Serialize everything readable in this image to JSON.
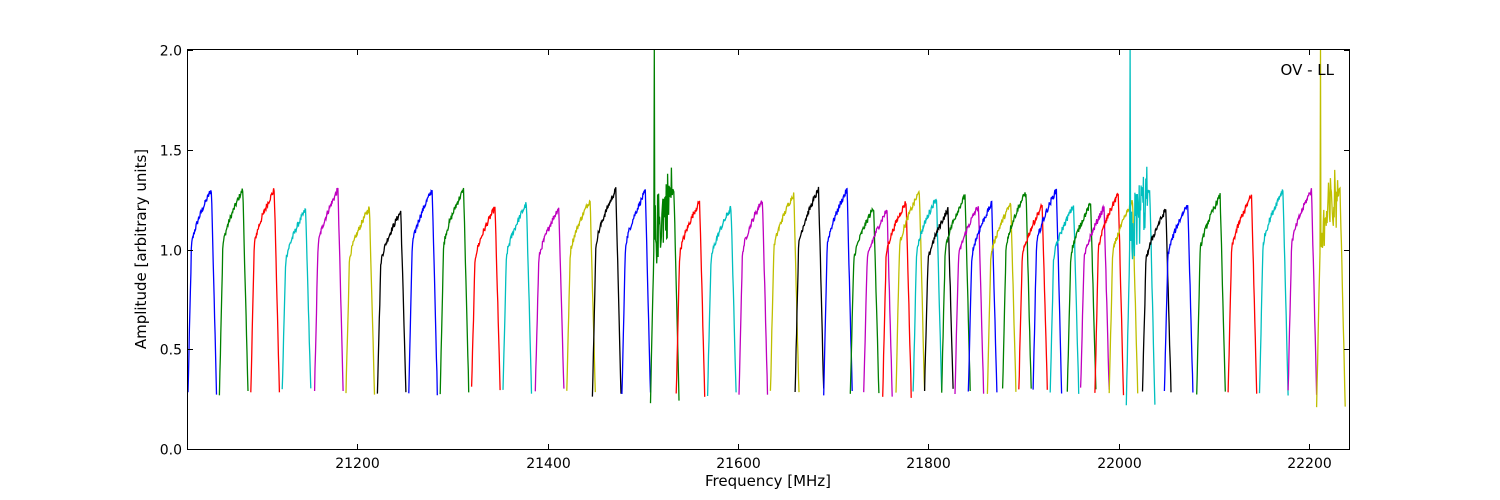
{
  "chart_data": {
    "type": "line",
    "title": "",
    "xlabel": "Frequency [MHz]",
    "ylabel": "Amplitude [arbitrary units]",
    "xlim": [
      21022,
      22242
    ],
    "ylim": [
      0.0,
      2.0
    ],
    "xticks": [
      21200,
      21400,
      21600,
      21800,
      22000,
      22200
    ],
    "yticks": [
      0.0,
      0.5,
      1.0,
      1.5,
      2.0
    ],
    "xtick_labels": [
      "21200",
      "21400",
      "21600",
      "21800",
      "22000",
      "22200"
    ],
    "ytick_labels": [
      "0.0",
      "0.5",
      "1.0",
      "1.5",
      "2.0"
    ],
    "grid": false,
    "legend": "none",
    "annotation": "OV - LL",
    "colors": [
      "#0000ff",
      "#008000",
      "#ff0000",
      "#00bfbf",
      "#bf00bf",
      "#bfbf00",
      "#000000"
    ],
    "band_width_mhz": 30,
    "bands": [
      {
        "start": 21022,
        "peak": 1.38,
        "base": 0.28,
        "color": "#0000ff"
      },
      {
        "start": 21055,
        "peak": 1.34,
        "base": 0.28,
        "color": "#008000"
      },
      {
        "start": 21088,
        "peak": 1.36,
        "base": 0.29,
        "color": "#ff0000"
      },
      {
        "start": 21121,
        "peak": 1.2,
        "base": 0.29,
        "color": "#00bfbf"
      },
      {
        "start": 21155,
        "peak": 1.33,
        "base": 0.29,
        "color": "#bf00bf"
      },
      {
        "start": 21188,
        "peak": 1.21,
        "base": 0.28,
        "color": "#bfbf00"
      },
      {
        "start": 21221,
        "peak": 1.19,
        "base": 0.29,
        "color": "#000000"
      },
      {
        "start": 21254,
        "peak": 1.36,
        "base": 0.28,
        "color": "#0000ff"
      },
      {
        "start": 21287,
        "peak": 1.42,
        "base": 0.29,
        "color": "#008000"
      },
      {
        "start": 21320,
        "peak": 1.21,
        "base": 0.3,
        "color": "#ff0000"
      },
      {
        "start": 21353,
        "peak": 1.23,
        "base": 0.29,
        "color": "#00bfbf"
      },
      {
        "start": 21387,
        "peak": 1.21,
        "base": 0.3,
        "color": "#bf00bf"
      },
      {
        "start": 21420,
        "peak": 1.25,
        "base": 0.28,
        "color": "#bfbf00"
      },
      {
        "start": 21447,
        "peak": 1.32,
        "base": 0.27,
        "color": "#000000"
      },
      {
        "start": 21478,
        "peak": 1.29,
        "base": 0.27,
        "color": "#0000ff"
      },
      {
        "start": 21508,
        "peak": 2.0,
        "base": 0.24,
        "color": "#008000"
      },
      {
        "start": 21535,
        "peak": 1.24,
        "base": 0.27,
        "color": "#ff0000"
      },
      {
        "start": 21568,
        "peak": 1.21,
        "base": 0.27,
        "color": "#00bfbf"
      },
      {
        "start": 21601,
        "peak": 1.25,
        "base": 0.28,
        "color": "#bf00bf"
      },
      {
        "start": 21634,
        "peak": 1.28,
        "base": 0.28,
        "color": "#bfbf00"
      },
      {
        "start": 21660,
        "peak": 1.36,
        "base": 0.29,
        "color": "#000000"
      },
      {
        "start": 21690,
        "peak": 1.31,
        "base": 0.28,
        "color": "#0000ff"
      },
      {
        "start": 21718,
        "peak": 1.21,
        "base": 0.28,
        "color": "#008000"
      },
      {
        "start": 21732,
        "peak": 1.2,
        "base": 0.27,
        "color": "#bf00bf"
      },
      {
        "start": 21752,
        "peak": 1.24,
        "base": 0.27,
        "color": "#ff0000"
      },
      {
        "start": 21766,
        "peak": 1.29,
        "base": 0.28,
        "color": "#bfbf00"
      },
      {
        "start": 21784,
        "peak": 1.26,
        "base": 0.28,
        "color": "#00bfbf"
      },
      {
        "start": 21796,
        "peak": 1.2,
        "base": 0.3,
        "color": "#000000"
      },
      {
        "start": 21814,
        "peak": 1.27,
        "base": 0.28,
        "color": "#008000"
      },
      {
        "start": 21828,
        "peak": 1.22,
        "base": 0.29,
        "color": "#bf00bf"
      },
      {
        "start": 21842,
        "peak": 1.23,
        "base": 0.28,
        "color": "#0000ff"
      },
      {
        "start": 21862,
        "peak": 1.23,
        "base": 0.29,
        "color": "#bfbf00"
      },
      {
        "start": 21878,
        "peak": 1.29,
        "base": 0.3,
        "color": "#008000"
      },
      {
        "start": 21895,
        "peak": 1.22,
        "base": 0.29,
        "color": "#ff0000"
      },
      {
        "start": 21910,
        "peak": 1.3,
        "base": 0.29,
        "color": "#0000ff"
      },
      {
        "start": 21928,
        "peak": 1.22,
        "base": 0.28,
        "color": "#00bfbf"
      },
      {
        "start": 21946,
        "peak": 1.23,
        "base": 0.29,
        "color": "#008000"
      },
      {
        "start": 21960,
        "peak": 1.21,
        "base": 0.3,
        "color": "#bf00bf"
      },
      {
        "start": 21975,
        "peak": 1.28,
        "base": 0.27,
        "color": "#ff0000"
      },
      {
        "start": 21990,
        "peak": 1.24,
        "base": 0.28,
        "color": "#bfbf00"
      },
      {
        "start": 22008,
        "peak": 2.0,
        "base": 0.23,
        "color": "#00bfbf"
      },
      {
        "start": 22025,
        "peak": 1.2,
        "base": 0.28,
        "color": "#000000"
      },
      {
        "start": 22048,
        "peak": 1.23,
        "base": 0.28,
        "color": "#0000ff"
      },
      {
        "start": 22082,
        "peak": 1.27,
        "base": 0.28,
        "color": "#008000"
      },
      {
        "start": 22115,
        "peak": 1.27,
        "base": 0.28,
        "color": "#ff0000"
      },
      {
        "start": 22148,
        "peak": 1.33,
        "base": 0.28,
        "color": "#00bfbf"
      },
      {
        "start": 22178,
        "peak": 1.31,
        "base": 0.28,
        "color": "#bf00bf"
      },
      {
        "start": 22208,
        "peak": 2.0,
        "base": 0.22,
        "color": "#bfbf00"
      }
    ]
  }
}
